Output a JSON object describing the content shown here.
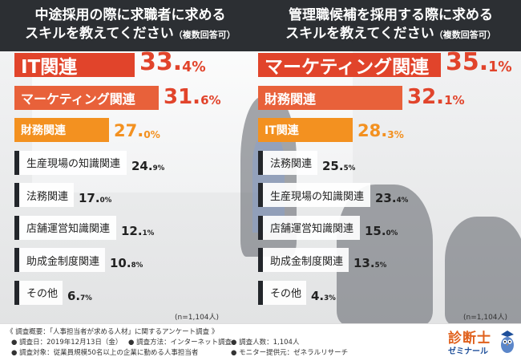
{
  "left_header": {
    "line1": "中途採用の際に求職者に求める",
    "line2": "スキルを教えてください",
    "sub": "（複数回答可）"
  },
  "right_header": {
    "line1": "管理職候補を採用する際に求める",
    "line2": "スキルを教えてください",
    "sub": "（複数回答可）"
  },
  "colors": {
    "red": "#e1442b",
    "orange_red": "#e8613a",
    "orange": "#f39120",
    "dark": "#23262b"
  },
  "chart_data": [
    {
      "type": "bar",
      "title": "中途採用の際に求職者に求めるスキルを教えてください（複数回答可）",
      "categories": [
        "IT関連",
        "マーケティング関連",
        "財務関連",
        "生産現場の知識関連",
        "法務関連",
        "店舗運営知識関連",
        "助成金制度関連",
        "その他"
      ],
      "values": [
        33.4,
        31.6,
        27.0,
        24.9,
        17.0,
        12.1,
        10.8,
        6.7
      ],
      "value_labels": [
        {
          "int": "33.",
          "dec": "4%"
        },
        {
          "int": "31.",
          "dec": "6%"
        },
        {
          "int": "27.",
          "dec": "0%"
        },
        {
          "int": "24.",
          "dec": "9%"
        },
        {
          "int": "17.",
          "dec": "0%"
        },
        {
          "int": "12.",
          "dec": "1%"
        },
        {
          "int": "10.",
          "dec": "8%"
        },
        {
          "int": "6.",
          "dec": "7%"
        }
      ],
      "note": "(n=1,104人)"
    },
    {
      "type": "bar",
      "title": "管理職候補を採用する際に求めるスキルを教えてください（複数回答可）",
      "categories": [
        "マーケティング関連",
        "財務関連",
        "IT関連",
        "法務関連",
        "生産現場の知識関連",
        "店舗運営知識関連",
        "助成金制度関連",
        "その他"
      ],
      "values": [
        35.1,
        32.1,
        28.3,
        25.5,
        23.4,
        15.0,
        13.5,
        4.3
      ],
      "value_labels": [
        {
          "int": "35.",
          "dec": "1%"
        },
        {
          "int": "32.",
          "dec": "1%"
        },
        {
          "int": "28.",
          "dec": "3%"
        },
        {
          "int": "25.",
          "dec": "5%"
        },
        {
          "int": "23.",
          "dec": "4%"
        },
        {
          "int": "15.",
          "dec": "0%"
        },
        {
          "int": "13.",
          "dec": "5%"
        },
        {
          "int": "4.",
          "dec": "3%"
        }
      ],
      "note": "(n=1,104人)"
    }
  ],
  "footer": {
    "l1": "《 調査概要：「人事担当者が求める人材」に関するアンケート調査 》",
    "l2a": "● 調査日：2019年12月13日（金）",
    "l2b": "● 調査方法：インターネット調査",
    "l2c": "● 調査人数：1,104人",
    "l3a": "● 調査対象：従業員規模50名以上の企業に勤める人事担当者",
    "l3b": "● モニター提供元：ゼネラルリサーチ"
  },
  "logo": {
    "line1": "診断士",
    "line2": "ゼミナール"
  }
}
